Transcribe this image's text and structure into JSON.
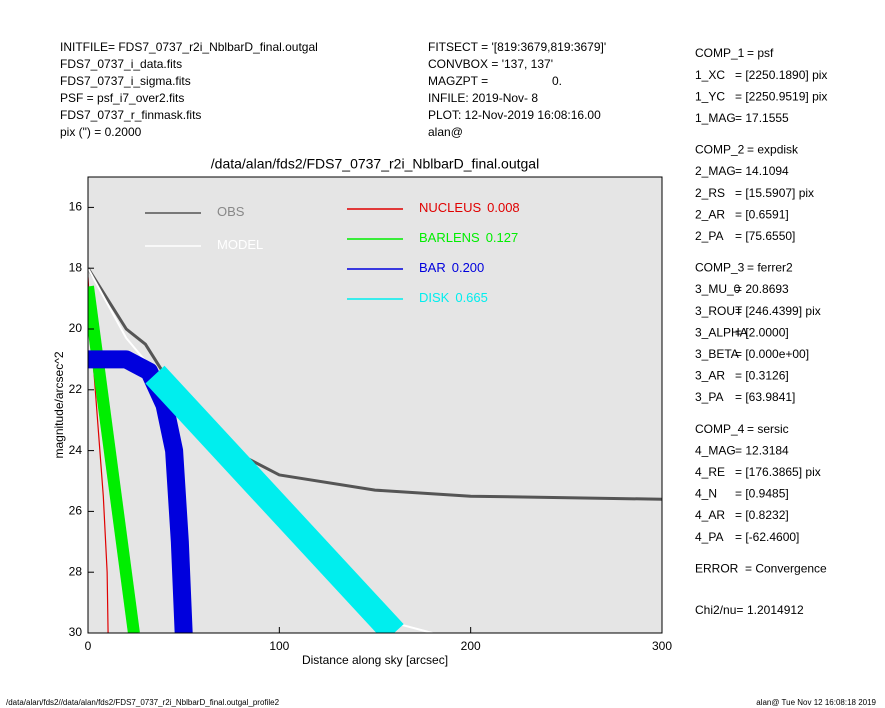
{
  "header_left": [
    "INITFILE= FDS7_0737_r2i_NblbarD_final.outgal",
    "FDS7_0737_i_data.fits",
    "FDS7_0737_i_sigma.fits",
    "PSF     = psf_i7_over2.fits",
    "FDS7_0737_r_finmask.fits",
    "pix (\") =  0.2000"
  ],
  "header_middle": [
    [
      "FITSECT = '[819:3679,819:3679]'",
      ""
    ],
    [
      "CONVBOX = '137, 137'",
      ""
    ],
    [
      "MAGZPT =",
      "0."
    ],
    [
      "INFILE: 2019-Nov- 8",
      ""
    ],
    [
      "PLOT: 12-Nov-2019 16:08:16.00",
      ""
    ],
    [
      "alan@",
      ""
    ]
  ],
  "components": [
    [
      [
        "COMP_1",
        "= psf"
      ],
      [
        "1_XC",
        "= [2250.1890] pix"
      ],
      [
        "1_YC",
        "= [2250.9519] pix"
      ],
      [
        "1_MAG",
        "= 17.1555"
      ]
    ],
    [
      [
        "COMP_2",
        "= expdisk"
      ],
      [
        "2_MAG",
        "= 14.1094"
      ],
      [
        "2_RS",
        "= [15.5907] pix"
      ],
      [
        "2_AR",
        "= [0.6591]"
      ],
      [
        "2_PA",
        "= [75.6550]"
      ]
    ],
    [
      [
        "COMP_3",
        "= ferrer2"
      ],
      [
        "3_MU_0",
        "= 20.8693"
      ],
      [
        "3_ROUT",
        "= [246.4399] pix"
      ],
      [
        "3_ALPHA",
        "= [2.0000]"
      ],
      [
        "3_BETA",
        "= [0.000e+00]"
      ],
      [
        "3_AR",
        "= [0.3126]"
      ],
      [
        "3_PA",
        "= [63.9841]"
      ]
    ],
    [
      [
        "COMP_4",
        "= sersic"
      ],
      [
        "4_MAG",
        "= 12.3184"
      ],
      [
        "4_RE",
        "= [176.3865] pix"
      ],
      [
        "4_N",
        "= [0.9485]"
      ],
      [
        "4_AR",
        "= [0.8232]"
      ],
      [
        "4_PA",
        "= [-62.4600]"
      ]
    ],
    [
      [
        "ERROR",
        "= Convergence"
      ]
    ],
    [
      [
        "Chi2/nu=",
        "1.2014912"
      ]
    ]
  ],
  "footer": {
    "left": "/data/alan/fds2//data/alan/fds2/FDS7_0737_r2i_NblbarD_final.outgal_profile2",
    "right": "alan@  Tue Nov 12 16:08:18 2019"
  },
  "chart_data": {
    "type": "line",
    "title": "/data/alan/fds2/FDS7_0737_r2i_NblbarD_final.outgal",
    "xlabel": "Distance along sky [arcsec]",
    "ylabel": "magnitude/arcsec^2",
    "xlim": [
      0,
      300
    ],
    "xticks": [
      0,
      100,
      200,
      300
    ],
    "ylim": [
      30,
      15
    ],
    "yticks": [
      16,
      18,
      20,
      22,
      24,
      26,
      28,
      30
    ],
    "background": "#e5e5e5",
    "series": [
      {
        "name": "OBS",
        "color": "#555555",
        "x": [
          0,
          20,
          30,
          40,
          60,
          100,
          150,
          200,
          300
        ],
        "values": [
          18,
          20,
          20.5,
          21.5,
          23.5,
          24.8,
          25.3,
          25.5,
          25.6
        ]
      },
      {
        "name": "MODEL",
        "color": "#ffffff",
        "x": [
          0,
          20,
          40,
          60,
          100,
          150,
          180
        ],
        "values": [
          18,
          20.3,
          21.8,
          23.5,
          26.5,
          29.5,
          30
        ]
      },
      {
        "name": "NUCLEUS",
        "fraction": "0.008",
        "color": "#e00000",
        "x": [
          0,
          2,
          5,
          8,
          10,
          10.5
        ],
        "values": [
          18.3,
          20.5,
          23,
          25.5,
          28,
          30
        ]
      },
      {
        "name": "BARLENS",
        "fraction": "0.127",
        "color": "#00ee00",
        "x": [
          0,
          24
        ],
        "values": [
          18.6,
          30
        ]
      },
      {
        "name": "BAR",
        "fraction": "0.200",
        "color": "#0000dd",
        "x": [
          0,
          20,
          32,
          40,
          45,
          48,
          50
        ],
        "values": [
          21,
          21,
          21.4,
          22.5,
          24,
          27,
          30
        ]
      },
      {
        "name": "DISK",
        "fraction": "0.665",
        "color": "#00eeee",
        "x": [
          35,
          160
        ],
        "values": [
          21.5,
          30
        ]
      }
    ]
  }
}
